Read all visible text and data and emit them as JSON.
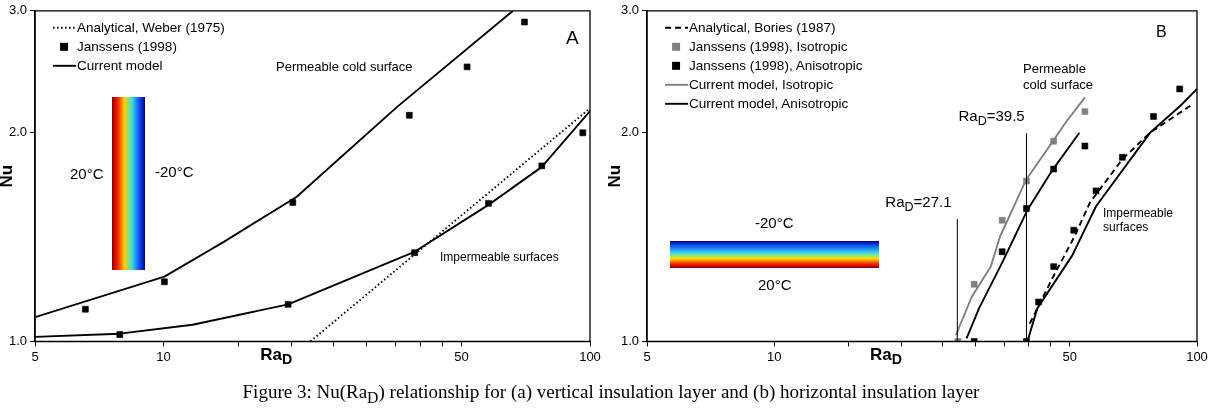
{
  "chart_data": [
    {
      "type": "line",
      "xlabel": "Ra$_{D}$",
      "ylabel": "Nu",
      "log": "xy",
      "legend": "top left",
      "xlim": [
        5,
        100
      ],
      "ylim": [
        1,
        3
      ],
      "xticks": [
        5,
        10,
        {
          "value": 15,
          "label": null
        },
        {
          "value": 20,
          "label": null
        },
        {
          "value": 25,
          "label": null
        },
        {
          "value": 30,
          "label": null
        },
        {
          "value": 35,
          "label": null
        },
        {
          "value": 40,
          "label": null
        },
        {
          "value": 45,
          "label": null
        },
        50,
        100
      ],
      "yticks": [
        {
          "value": 1,
          "label": "1.0"
        },
        {
          "value": 2,
          "label": "2.0"
        },
        {
          "value": 3,
          "label": "3.0"
        }
      ],
      "annotations": [
        "A",
        "Permeable  cold surface",
        "Impermeable surfaces",
        "20°C",
        "-20°C",
        "Figure 3: Nu(Ra$_{D}$) relationship for (a) vertical insulation layer and (b) horizontal insulation layer"
      ],
      "series": [
        {
          "name": "Analytical, Weber (1975)",
          "color": "#000000",
          "marker": "none",
          "line_style": "dotted",
          "x": [
            22.1,
            100
          ],
          "values": [
            1.0,
            2.17
          ]
        },
        {
          "type": "scatter",
          "name": "Janssens (1998)",
          "color": "#000000",
          "marker": "square",
          "x": [
            6.56,
            10.05,
            20.1,
            37.7,
            51.5,
            70.2,
            7.9,
            19.6,
            38.8,
            57.8,
            77.1,
            96.2
          ],
          "values": [
            1.113,
            1.219,
            1.587,
            2.12,
            2.49,
            2.89,
            1.023,
            1.131,
            1.343,
            1.582,
            1.792,
            2.0
          ]
        },
        {
          "name": "Current model",
          "color": "#000000",
          "marker": "none",
          "line_style": "solid",
          "x": [
            5,
            10.05,
            13.85,
            20.5,
            35.3,
            66
          ],
          "values": [
            1.084,
            1.24,
            1.392,
            1.616,
            2.18,
            3.0
          ]
        },
        {
          "color": "#000000",
          "marker": "none",
          "line_style": "solid",
          "x": [
            5,
            7.9,
            11.7,
            19.6,
            38.8,
            57.8,
            77.1,
            100
          ],
          "values": [
            1.015,
            1.026,
            1.057,
            1.131,
            1.347,
            1.574,
            1.786,
            2.15
          ]
        }
      ]
    },
    {
      "type": "line",
      "xlabel": "Ra$_{D}$",
      "ylabel": "Nu",
      "log": "xy",
      "legend": "top left",
      "xlim": [
        5,
        100
      ],
      "ylim": [
        1,
        3
      ],
      "xticks": [
        5,
        10,
        {
          "value": 15,
          "label": null
        },
        {
          "value": 20,
          "label": null
        },
        {
          "value": 25,
          "label": null
        },
        {
          "value": 30,
          "label": null
        },
        {
          "value": 35,
          "label": null
        },
        {
          "value": 40,
          "label": null
        },
        {
          "value": 45,
          "label": null
        },
        50,
        100
      ],
      "yticks": [
        {
          "value": 1,
          "label": "1.0"
        },
        {
          "value": 2,
          "label": "2.0"
        },
        {
          "value": 3,
          "label": "3.0"
        }
      ],
      "ref_lines": [
        {
          "axis": "x",
          "value": 27.1,
          "label": "Ra$_{D}$=27.1"
        },
        {
          "axis": "x",
          "value": 39.5,
          "label": "Ra$_{D}$=39.5"
        }
      ],
      "annotations": [
        "B",
        "Permeable\ncold surface",
        "Impermeable\nsurfaces",
        "-20°C",
        "20°C"
      ],
      "series": [
        {
          "name": "Analytical, Bories (1987)",
          "color": "#000000",
          "marker": "none",
          "line_style": "dashed",
          "x": [
            40.2,
            45.5,
            51.3,
            55.8,
            66.7,
            77.4,
            97.7
          ],
          "values": [
            1.061,
            1.234,
            1.417,
            1.586,
            1.834,
            2.0,
            2.2
          ]
        },
        {
          "type": "scatter",
          "name": "Janssens (1998), Isotropic",
          "color": "#808080",
          "marker": "square",
          "x": [
            27.2,
            29.7,
            34.6,
            39.5,
            45.8,
            54.3
          ],
          "values": [
            1.0,
            1.209,
            1.496,
            1.704,
            1.945,
            2.146
          ]
        },
        {
          "type": "scatter",
          "name": "Janssens (1998), Anisotropic",
          "color": "#000000",
          "marker": "square",
          "x": [
            29.7,
            34.6,
            39.5,
            45.8,
            54.3,
            39.5,
            42.2,
            45.8,
            51.1,
            57.7,
            66.6,
            78.9,
            91.0
          ],
          "values": [
            1.0,
            1.347,
            1.555,
            1.773,
            1.914,
            1.0,
            1.14,
            1.282,
            1.447,
            1.649,
            1.844,
            2.112,
            2.314
          ]
        },
        {
          "name": "Current model, Isotropic",
          "color": "#808080",
          "marker": "none",
          "line_style": "solid",
          "x": [
            26.9,
            29.3,
            32.5,
            34.2,
            39.4,
            45.5,
            49.2,
            54.3
          ],
          "values": [
            1.021,
            1.159,
            1.282,
            1.417,
            1.71,
            1.942,
            2.08,
            2.25
          ]
        },
        {
          "name": "Current model, Anisotropic",
          "color": "#000000",
          "marker": "none",
          "line_style": "solid",
          "x": [
            28.5,
            30.5,
            34.6,
            39.7,
            45.5,
            52.7
          ],
          "values": [
            1.01,
            1.116,
            1.299,
            1.547,
            1.767,
            2.0
          ]
        },
        {
          "color": "#000000",
          "marker": "none",
          "line_style": "solid",
          "x": [
            39.7,
            41.9,
            50.7,
            57.7,
            77.4,
            91.5,
            100
          ],
          "values": [
            1.0,
            1.116,
            1.331,
            1.567,
            2.0,
            2.19,
            2.314
          ]
        }
      ]
    }
  ]
}
